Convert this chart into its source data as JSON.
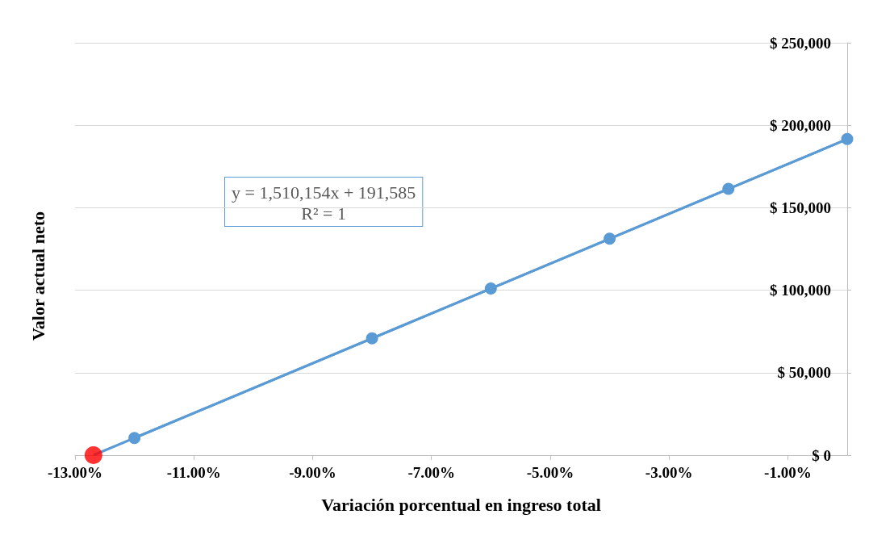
{
  "chart_data": {
    "type": "line",
    "xlabel": "Variación porcentual en ingreso total",
    "ylabel": "Valor actual neto",
    "annotations": [
      "y = 1,510,154x + 191,585",
      "R² = 1"
    ],
    "series": [
      {
        "color": "#5b9bd5",
        "x": [
          -12.69,
          0
        ],
        "values": [
          0,
          191600
        ]
      },
      {
        "color": "#5b9bd5",
        "marker": "circle",
        "x": [
          -12,
          -8,
          -6,
          -4,
          -2,
          0
        ],
        "values": [
          10400,
          70800,
          101000,
          131200,
          161400,
          191600
        ]
      },
      {
        "type": "scatter",
        "color": "#ff0000",
        "marker": "circle",
        "x": [
          -12.69
        ],
        "values": [
          0
        ]
      }
    ],
    "xlim": [
      -13,
      0
    ],
    "xticks": [
      {
        "value": -13,
        "label": "-13.00%"
      },
      {
        "value": -11,
        "label": "-11.00%"
      },
      {
        "value": -9,
        "label": "-9.00%"
      },
      {
        "value": -7,
        "label": "-7.00%"
      },
      {
        "value": -5,
        "label": "-5.00%"
      },
      {
        "value": -3,
        "label": "-3.00%"
      },
      {
        "value": -1,
        "label": "-1.00%"
      }
    ],
    "ylim": [
      0,
      250000
    ],
    "yticks": [
      {
        "value": 0,
        "label": "$ 0"
      },
      {
        "value": 50000,
        "label": "$ 50,000"
      },
      {
        "value": 100000,
        "label": "$ 100,000"
      },
      {
        "value": 150000,
        "label": "$ 150,000"
      },
      {
        "value": 200000,
        "label": "$ 200,000"
      },
      {
        "value": 250000,
        "label": "$ 250,000"
      }
    ],
    "grid": "y"
  }
}
